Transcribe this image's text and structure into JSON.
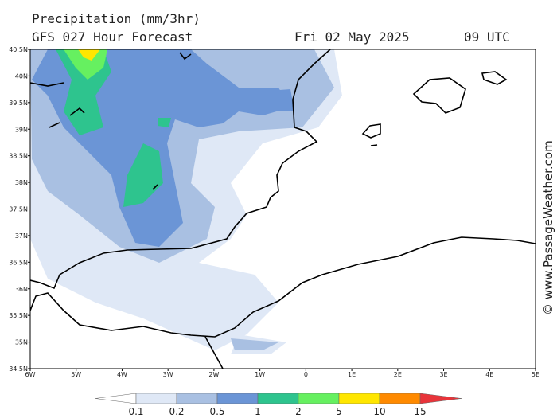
{
  "header": {
    "title": "Precipitation (mm/3hr)",
    "subtitle": "GFS 027 Hour Forecast",
    "date": "Fri 02 May 2025",
    "time": "09 UTC"
  },
  "watermark": "© www.PassageWeather.com",
  "map": {
    "xlim": [
      -6,
      5
    ],
    "ylim": [
      34.5,
      40.5
    ],
    "yticks": [
      {
        "value": 40.5,
        "label": "40.5N"
      },
      {
        "value": 40,
        "label": "40N"
      },
      {
        "value": 39.5,
        "label": "39.5N"
      },
      {
        "value": 39,
        "label": "39N"
      },
      {
        "value": 38.5,
        "label": "38.5N"
      },
      {
        "value": 38,
        "label": "38N"
      },
      {
        "value": 37.5,
        "label": "37.5N"
      },
      {
        "value": 37,
        "label": "37N"
      },
      {
        "value": 36.5,
        "label": "36.5N"
      },
      {
        "value": 36,
        "label": "36N"
      },
      {
        "value": 35.5,
        "label": "35.5N"
      },
      {
        "value": 35,
        "label": "35N"
      },
      {
        "value": 34.5,
        "label": "34.5N"
      }
    ],
    "xticks": [
      {
        "value": -6,
        "label": "6W"
      },
      {
        "value": -5,
        "label": "5W"
      },
      {
        "value": -4,
        "label": "4W"
      },
      {
        "value": -3,
        "label": "3W"
      },
      {
        "value": -2,
        "label": "2W"
      },
      {
        "value": -1,
        "label": "1W"
      },
      0,
      {
        "value": 1,
        "label": "1E"
      },
      {
        "value": 2,
        "label": "2E"
      },
      {
        "value": 3,
        "label": "3E"
      },
      {
        "value": 4,
        "label": "4E"
      },
      {
        "value": 5,
        "label": "5E"
      }
    ]
  },
  "legend": {
    "levels": [
      0.1,
      0.2,
      0.5,
      1,
      2,
      5,
      10,
      15
    ],
    "colors": [
      "#ffffff",
      "#dfe8f6",
      "#a9c0e2",
      "#6b95d6",
      "#2ec48e",
      "#66f060",
      "#ffe600",
      "#ff8a00",
      "#e8343a"
    ]
  }
}
